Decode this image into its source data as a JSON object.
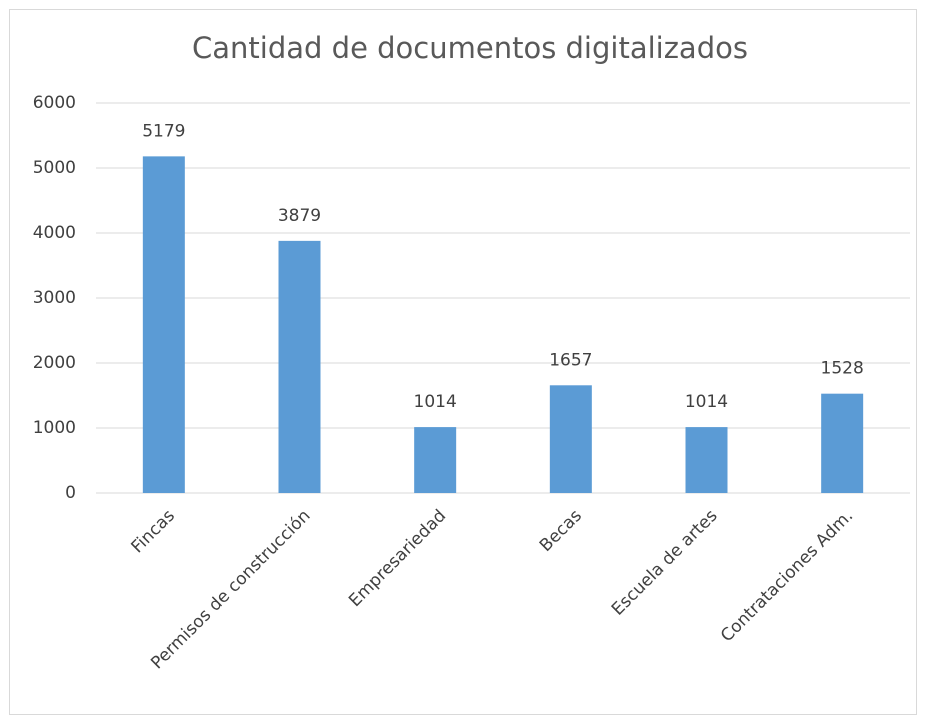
{
  "chart_data": {
    "type": "bar",
    "title": "Cantidad de documentos digitalizados",
    "categories": [
      "Fincas",
      "Permisos de construcción",
      "Empresariedad",
      "Becas",
      "Escuela de artes",
      "Contrataciones Adm."
    ],
    "values": [
      5179,
      3879,
      1014,
      1657,
      1014,
      1528
    ],
    "color": "#5b9bd5",
    "ylim": [
      0,
      6000
    ],
    "yticks": [
      0,
      1000,
      2000,
      3000,
      4000,
      5000,
      6000
    ],
    "grid": true
  }
}
